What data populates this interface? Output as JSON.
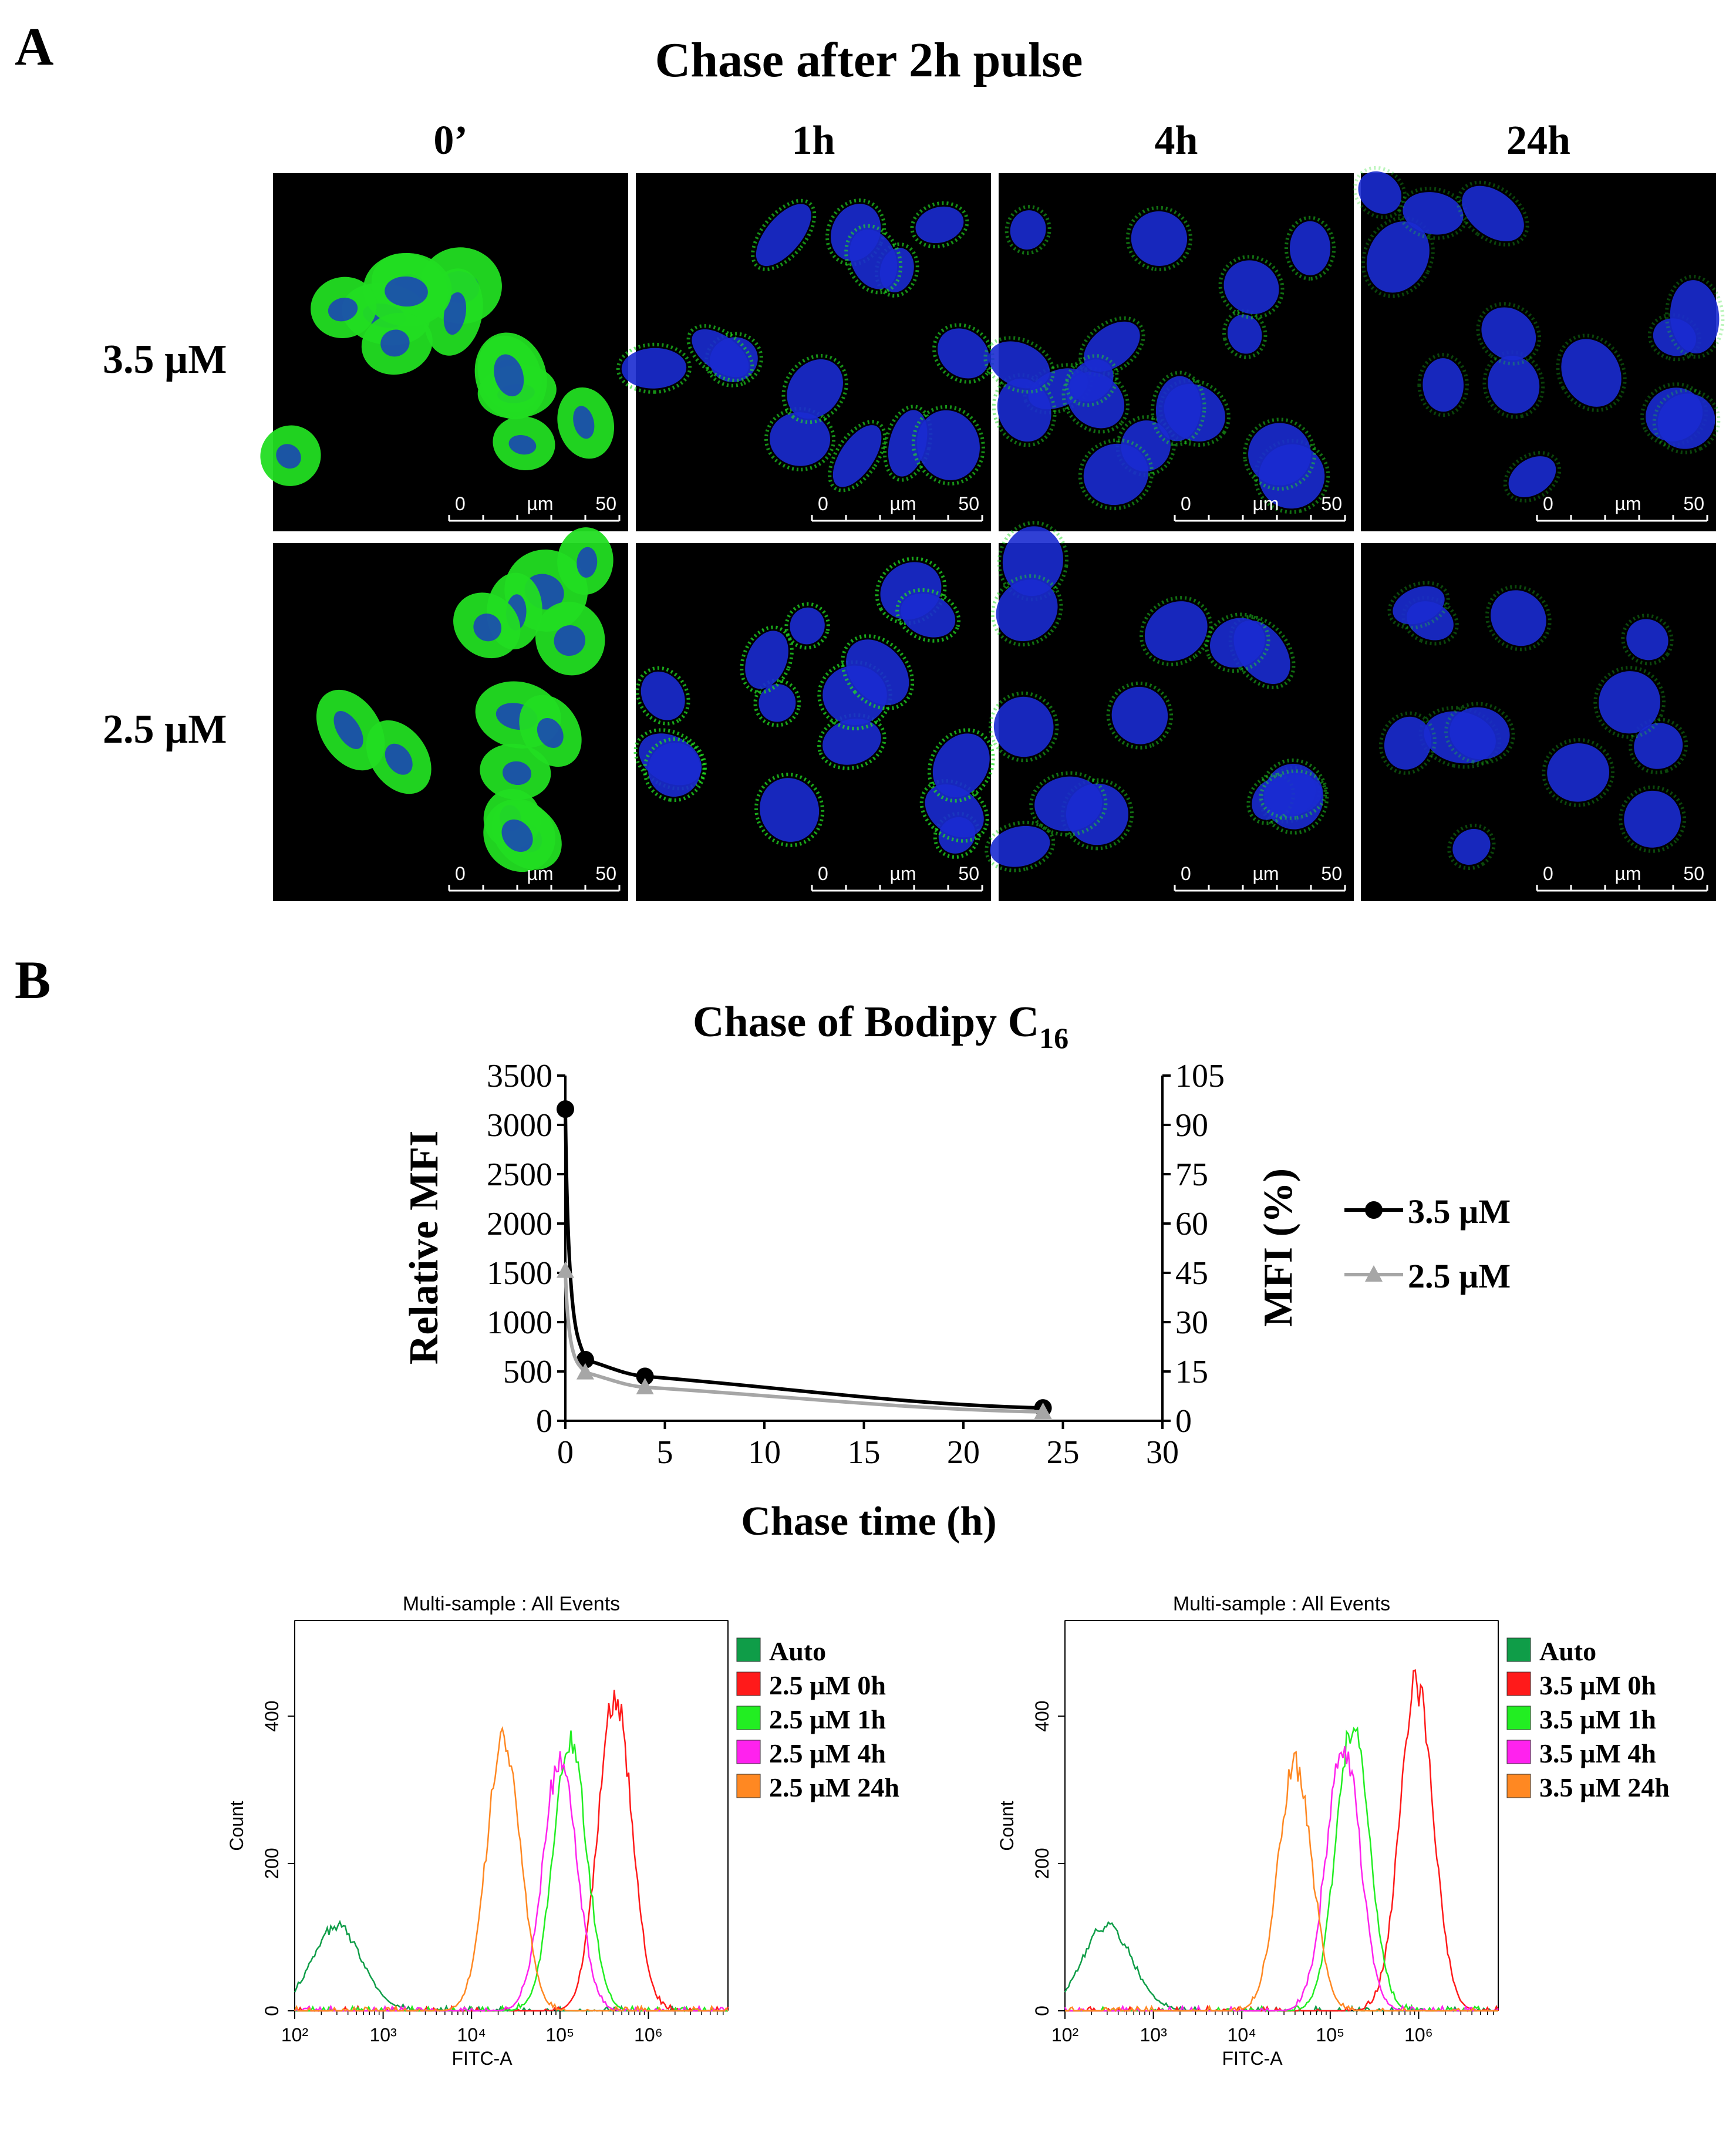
{
  "panel_a": {
    "label": "A",
    "title": "Chase after 2h pulse",
    "columns": [
      "0’",
      "1h",
      "4h",
      "24h"
    ],
    "rows": [
      "3.5 µM",
      "2.5 µM"
    ],
    "scalebar": {
      "start": "0",
      "unit": "µm",
      "end": "50"
    },
    "colors": {
      "background": "#000000",
      "membrane": "#22dd22",
      "nucleus": "#1a2bd0"
    }
  },
  "panel_b": {
    "label": "B",
    "title_main": "Chase of Bodipy C",
    "title_sub": "16"
  },
  "chart_data": [
    {
      "type": "line",
      "title": "Chase of Bodipy C16",
      "xlabel": "Chase time (h)",
      "ylabel": "Relative MFI",
      "y2label": "MFI (%)",
      "xlim": [
        0,
        30
      ],
      "ylim": [
        0,
        3500
      ],
      "y2lim": [
        0,
        105
      ],
      "xticks": [
        0,
        5,
        10,
        15,
        20,
        25,
        30
      ],
      "yticks": [
        0,
        500,
        1000,
        1500,
        2000,
        2500,
        3000,
        3500
      ],
      "y2ticks": [
        0,
        15,
        30,
        45,
        60,
        75,
        90,
        105
      ],
      "legend_position": "right",
      "series": [
        {
          "name": "3.5 µM",
          "marker": "circle",
          "color": "#000000",
          "x": [
            0,
            1,
            4,
            24
          ],
          "y": [
            3160,
            620,
            450,
            130
          ]
        },
        {
          "name": "2.5 µM",
          "marker": "triangle",
          "color": "#a6a6a6",
          "x": [
            0,
            1,
            4,
            24
          ],
          "y": [
            1520,
            490,
            340,
            90
          ]
        }
      ]
    },
    {
      "type": "area",
      "title": "Multi-sample : All Events",
      "xlabel": "FITC-A",
      "ylabel": "Count",
      "x_scale": "log",
      "xlim": [
        100,
        1000000
      ],
      "ylim": [
        0,
        530
      ],
      "xticks": [
        "10²",
        "10³",
        "10⁴",
        "10⁵",
        "10⁶"
      ],
      "yticks": [
        0,
        200,
        400
      ],
      "legend_position": "right",
      "series": [
        {
          "name": "Auto",
          "color": "#0f9d48",
          "peak_x": 300,
          "peak_count": 115
        },
        {
          "name": "2.5 µM 0h",
          "color": "#ff1a1a",
          "peak_x": 420000,
          "peak_count": 430
        },
        {
          "name": "2.5 µM 1h",
          "color": "#22ee22",
          "peak_x": 130000,
          "peak_count": 360
        },
        {
          "name": "2.5 µM 4h",
          "color": "#ff22ee",
          "peak_x": 100000,
          "peak_count": 340
        },
        {
          "name": "2.5 µM 24h",
          "color": "#ff8822",
          "peak_x": 23000,
          "peak_count": 370
        }
      ]
    },
    {
      "type": "area",
      "title": "Multi-sample : All Events",
      "xlabel": "FITC-A",
      "ylabel": "Count",
      "x_scale": "log",
      "xlim": [
        100,
        1000000
      ],
      "ylim": [
        0,
        530
      ],
      "xticks": [
        "10²",
        "10³",
        "10⁴",
        "10⁵",
        "10⁶"
      ],
      "yticks": [
        0,
        200,
        400
      ],
      "legend_position": "right",
      "series": [
        {
          "name": "Auto",
          "color": "#0f9d48",
          "peak_x": 300,
          "peak_count": 115
        },
        {
          "name": "3.5 µM 0h",
          "color": "#ff1a1a",
          "peak_x": 950000,
          "peak_count": 440
        },
        {
          "name": "3.5 µM 1h",
          "color": "#22ee22",
          "peak_x": 180000,
          "peak_count": 380
        },
        {
          "name": "3.5 µM 4h",
          "color": "#ff22ee",
          "peak_x": 140000,
          "peak_count": 360
        },
        {
          "name": "3.5 µM 24h",
          "color": "#ff8822",
          "peak_x": 40000,
          "peak_count": 335
        }
      ]
    }
  ]
}
